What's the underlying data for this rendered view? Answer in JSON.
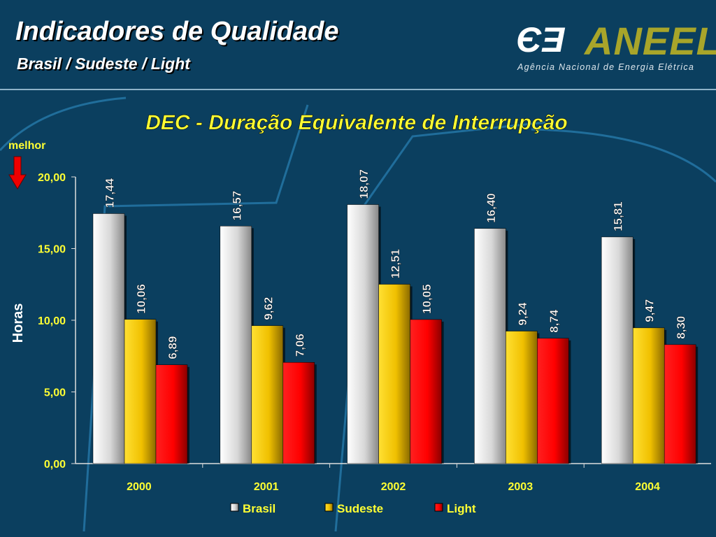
{
  "header": {
    "title": "Indicadores de Qualidade",
    "subtitle": "Brasil / Sudeste / Light"
  },
  "logo": {
    "name": "ANEEL",
    "tagline": "Agência Nacional de Energia Elétrica"
  },
  "chart_data": {
    "type": "bar",
    "title": "DEC - Duração Equivalente de Interrupção",
    "ylabel": "Horas",
    "xlabel": "",
    "annotation": "melhor",
    "ylim": [
      0,
      20
    ],
    "yticks": [
      "0,00",
      "5,00",
      "10,00",
      "15,00",
      "20,00"
    ],
    "categories": [
      "2000",
      "2001",
      "2002",
      "2003",
      "2004"
    ],
    "series": [
      {
        "name": "Brasil",
        "color": "#d8d8d8",
        "values": [
          17.44,
          16.57,
          18.07,
          16.4,
          15.81
        ],
        "labels": [
          "17,44",
          "16,57",
          "18,07",
          "16,40",
          "15,81"
        ]
      },
      {
        "name": "Sudeste",
        "color": "#f0c000",
        "values": [
          10.06,
          9.62,
          12.51,
          9.24,
          9.47
        ],
        "labels": [
          "10,06",
          "9,62",
          "12,51",
          "9,24",
          "9,47"
        ]
      },
      {
        "name": "Light",
        "color": "#ff0000",
        "values": [
          6.89,
          7.06,
          10.05,
          8.74,
          8.3
        ],
        "labels": [
          "6,89",
          "7,06",
          "10,05",
          "8,74",
          "8,30"
        ]
      }
    ],
    "legend": "bottom"
  }
}
